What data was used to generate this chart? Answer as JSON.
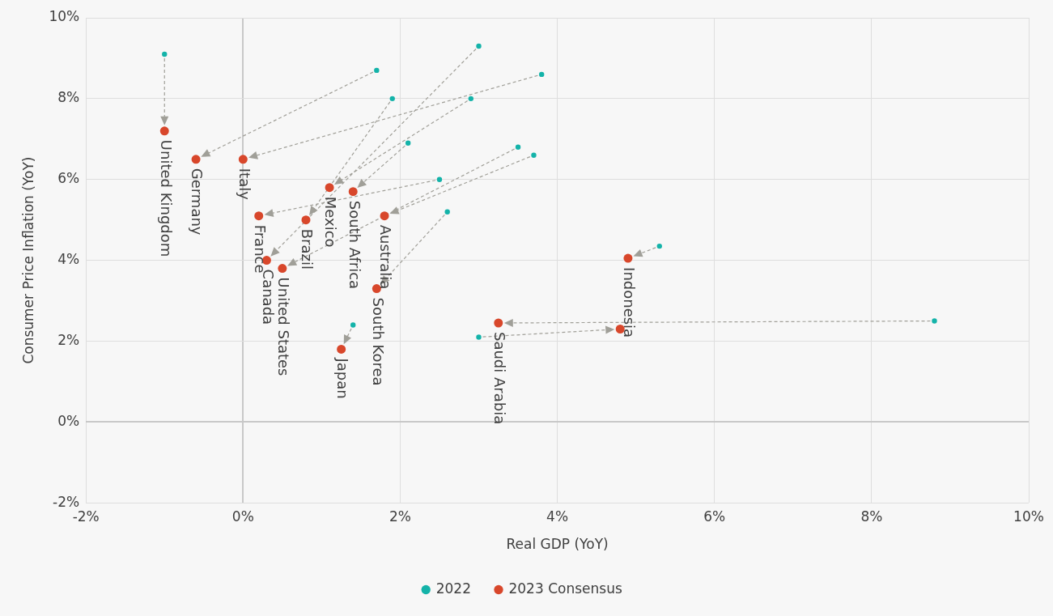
{
  "chart_data": {
    "type": "scatter",
    "xlabel": "Real GDP (YoY)",
    "ylabel": "Consumer Price Inflation (YoY)",
    "xlim": [
      -2,
      10
    ],
    "xticks": [
      {
        "value": -2,
        "label": "-2%"
      },
      {
        "value": 0,
        "label": "0%"
      },
      {
        "value": 2,
        "label": "2%"
      },
      {
        "value": 4,
        "label": "4%"
      },
      {
        "value": 6,
        "label": "6%"
      },
      {
        "value": 8,
        "label": "8%"
      },
      {
        "value": 10,
        "label": "10%"
      }
    ],
    "ylim": [
      -2,
      10
    ],
    "yticks": [
      {
        "value": -2,
        "label": "-2%"
      },
      {
        "value": 0,
        "label": "0%"
      },
      {
        "value": 2,
        "label": "2%"
      },
      {
        "value": 4,
        "label": "4%"
      },
      {
        "value": 6,
        "label": "6%"
      },
      {
        "value": 8,
        "label": "8%"
      },
      {
        "value": 10,
        "label": "10%"
      }
    ],
    "grid": true,
    "legend": "bottom",
    "marker": "circle",
    "series": [
      {
        "name": "2022",
        "color": "#14b3a9",
        "x": [
          -1.0,
          1.7,
          3.8,
          2.9,
          2.1,
          2.5,
          1.9,
          3.0,
          3.7,
          3.5,
          2.6,
          1.4,
          8.8,
          5.3,
          3.0
        ],
        "values": [
          9.1,
          8.7,
          8.6,
          8.0,
          6.9,
          6.0,
          8.0,
          9.3,
          6.6,
          6.8,
          5.2,
          2.4,
          2.5,
          4.35,
          2.1
        ]
      },
      {
        "name": "2023 Consensus",
        "color": "#d8472b",
        "x": [
          -1.0,
          -0.6,
          0.0,
          1.1,
          1.4,
          0.2,
          0.8,
          0.3,
          1.8,
          0.5,
          1.7,
          1.25,
          3.25,
          4.9,
          4.8
        ],
        "values": [
          7.2,
          6.5,
          6.5,
          5.8,
          5.7,
          5.1,
          5.0,
          4.0,
          5.1,
          3.8,
          3.3,
          1.8,
          2.45,
          4.05,
          2.3
        ]
      }
    ],
    "annotations": [
      {
        "text": "United Kingdom",
        "x": -1.0,
        "y": 7.2
      },
      {
        "text": "Germany",
        "x": -0.6,
        "y": 6.5
      },
      {
        "text": "Italy",
        "x": 0.0,
        "y": 6.5
      },
      {
        "text": "Mexico",
        "x": 1.1,
        "y": 5.8
      },
      {
        "text": "South Africa",
        "x": 1.4,
        "y": 5.7
      },
      {
        "text": "France",
        "x": 0.2,
        "y": 5.1
      },
      {
        "text": "Brazil",
        "x": 0.8,
        "y": 5.0
      },
      {
        "text": "Canada",
        "x": 0.3,
        "y": 4.0
      },
      {
        "text": "Australia",
        "x": 1.8,
        "y": 5.1
      },
      {
        "text": "United States",
        "x": 0.5,
        "y": 3.8
      },
      {
        "text": "South Korea",
        "x": 1.7,
        "y": 3.3
      },
      {
        "text": "Japan",
        "x": 1.25,
        "y": 1.8
      },
      {
        "text": "Saudi Arabia",
        "x": 3.25,
        "y": 2.45
      },
      {
        "text": "Indonesia",
        "x": 4.9,
        "y": 4.05
      }
    ]
  }
}
